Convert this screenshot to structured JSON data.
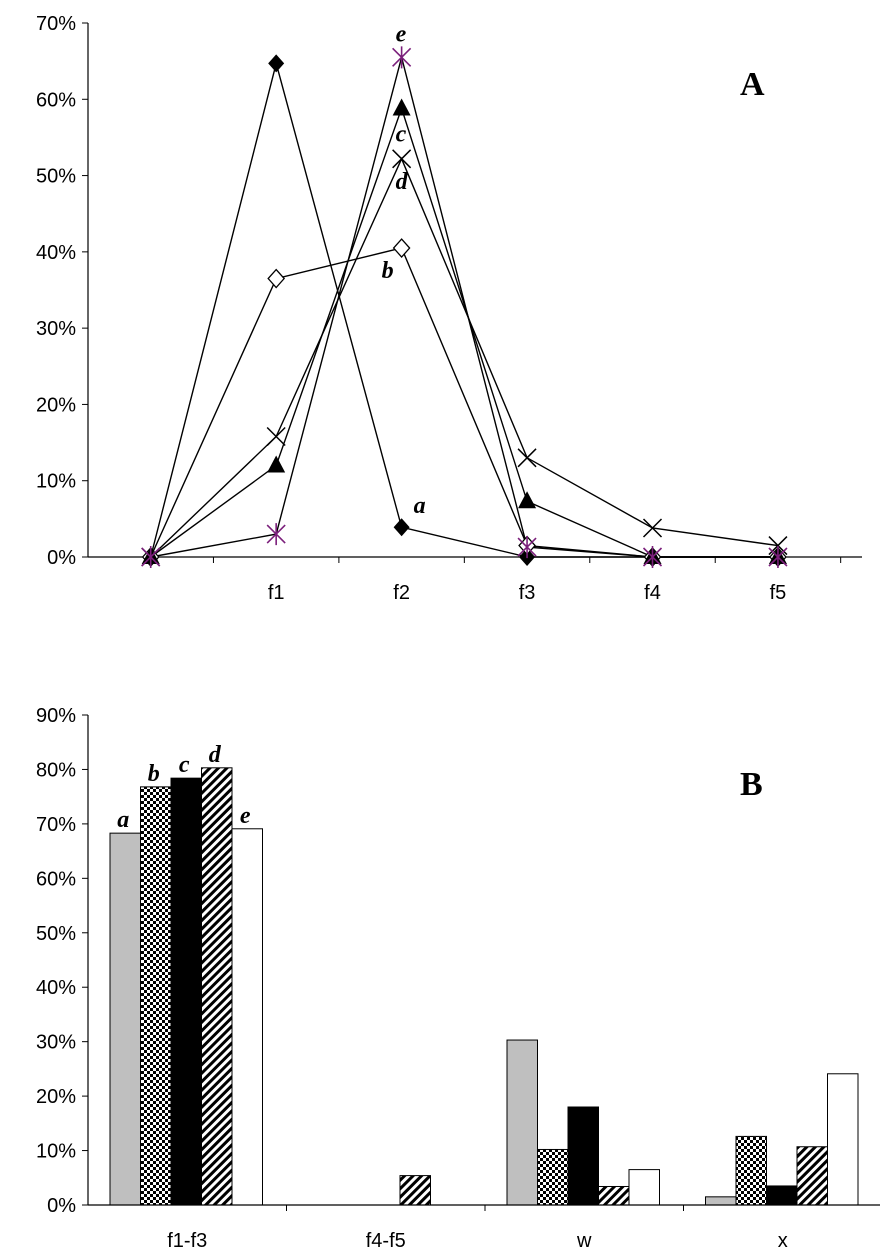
{
  "chart_data": [
    {
      "type": "line",
      "panel_label": "A",
      "title": "",
      "xlabel": "",
      "ylabel": "",
      "ylim": [
        0,
        70
      ],
      "y_unit": "%",
      "y_ticks": [
        "0%",
        "10%",
        "20%",
        "30%",
        "40%",
        "50%",
        "60%",
        "70%"
      ],
      "x_tick_labels": [
        "",
        "f1",
        "f2",
        "f3",
        "f4",
        "f5"
      ],
      "grid": false,
      "series": [
        {
          "id": "a",
          "label": "a",
          "marker": "diamond-filled",
          "values": [
            0,
            64.7,
            3.9,
            0,
            0,
            0
          ]
        },
        {
          "id": "b",
          "label": "b",
          "marker": "diamond-open",
          "values": [
            0,
            36.5,
            40.5,
            1.5,
            0,
            0
          ]
        },
        {
          "id": "c",
          "label": "c",
          "marker": "triangle-filled",
          "values": [
            0,
            12,
            58.8,
            7.3,
            0,
            0
          ]
        },
        {
          "id": "d",
          "label": "d",
          "marker": "x",
          "values": [
            0,
            15.8,
            52.2,
            13,
            3.8,
            1.5
          ]
        },
        {
          "id": "e",
          "label": "e",
          "marker": "star",
          "values": [
            0,
            3,
            65.5,
            1.3,
            0,
            0
          ]
        }
      ]
    },
    {
      "type": "bar",
      "panel_label": "B",
      "title": "",
      "xlabel": "",
      "ylabel": "",
      "ylim": [
        0,
        90
      ],
      "y_unit": "%",
      "y_ticks": [
        "0%",
        "10%",
        "20%",
        "30%",
        "40%",
        "50%",
        "60%",
        "70%",
        "80%",
        "90%"
      ],
      "categories": [
        "f1-f3",
        "f4-f5",
        "w",
        "x"
      ],
      "grid": false,
      "series": [
        {
          "id": "a",
          "label": "a",
          "fill": "gray",
          "values": [
            68.3,
            0,
            30.3,
            1.5
          ]
        },
        {
          "id": "b",
          "label": "b",
          "fill": "checker",
          "values": [
            76.8,
            0,
            10.2,
            12.6
          ]
        },
        {
          "id": "c",
          "label": "c",
          "fill": "black",
          "values": [
            78.4,
            0,
            18,
            3.5
          ]
        },
        {
          "id": "d",
          "label": "d",
          "fill": "hatch",
          "values": [
            80.3,
            5.4,
            3.4,
            10.7
          ]
        },
        {
          "id": "e",
          "label": "e",
          "fill": "white",
          "values": [
            69.1,
            0,
            6.5,
            24.1
          ]
        }
      ]
    }
  ]
}
